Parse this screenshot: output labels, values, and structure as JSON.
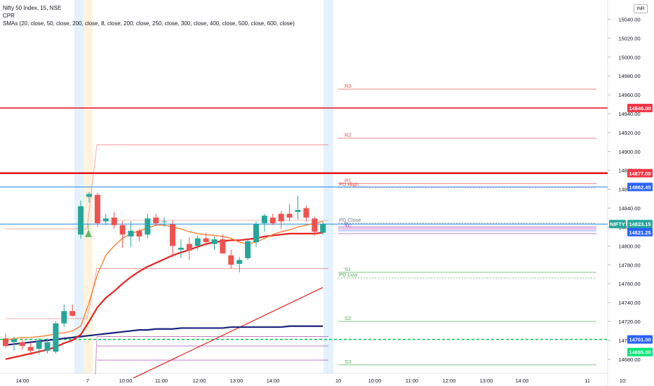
{
  "legend": {
    "symbol": "Nifty 50 Index, 15, NSE",
    "cpr": "CPR",
    "smas": "SMAs (20, close, 50, close, 200, close, 8, close, 200, close, 250, close, 300, close, 400, close, 500, close, 600, close)"
  },
  "currency": "INR",
  "colors": {
    "up": "#26a69a",
    "down": "#ef5350",
    "resistance": "#ef5350",
    "support": "#4caf50",
    "pivot": "#9c27b0",
    "blue_level": "#2962ff",
    "session_band": "#e3f2fd",
    "sma_orange": "#ff7722",
    "sma_red": "#e8201e",
    "sma_navy": "#1a237e",
    "green_dashed": "#00c853"
  },
  "chart_data": {
    "type": "candlestick",
    "symbol": "NIFTY",
    "interval": "15",
    "ylim": [
      14665,
      15050
    ],
    "y_ticks": [
      14680,
      14700,
      14720,
      14740,
      14760,
      14780,
      14800,
      14820,
      14840,
      14860,
      14880,
      14900,
      14920,
      14940,
      14960,
      14980,
      15000,
      15020,
      15040
    ],
    "x_ticks": [
      "14:00",
      "7",
      "10:00",
      "11:00",
      "12:00",
      "13:00",
      "14:00",
      "10",
      "10:00",
      "11:00",
      "12:00",
      "13:00",
      "14:00",
      "11",
      "10:"
    ],
    "candles": [
      {
        "o": 14702,
        "h": 14707,
        "l": 14692,
        "c": 14694
      },
      {
        "o": 14698,
        "h": 14704,
        "l": 14689,
        "c": 14701
      },
      {
        "o": 14698,
        "h": 14702,
        "l": 14690,
        "c": 14694
      },
      {
        "o": 14693,
        "h": 14697,
        "l": 14684,
        "c": 14689
      },
      {
        "o": 14691,
        "h": 14702,
        "l": 14685,
        "c": 14699
      },
      {
        "o": 14689,
        "h": 14702,
        "l": 14686,
        "c": 14698
      },
      {
        "o": 14688,
        "h": 14720,
        "l": 14686,
        "c": 14718
      },
      {
        "o": 14718,
        "h": 14738,
        "l": 14714,
        "c": 14731
      },
      {
        "o": 14731,
        "h": 14738,
        "l": 14725,
        "c": 14726
      },
      {
        "o": 14812,
        "h": 14848,
        "l": 14808,
        "c": 14842
      },
      {
        "o": 14852,
        "h": 14857,
        "l": 14846,
        "c": 14855
      },
      {
        "o": 14854,
        "h": 14856,
        "l": 14820,
        "c": 14824
      },
      {
        "o": 14826,
        "h": 14834,
        "l": 14822,
        "c": 14829
      },
      {
        "o": 14830,
        "h": 14836,
        "l": 14818,
        "c": 14822
      },
      {
        "o": 14822,
        "h": 14826,
        "l": 14798,
        "c": 14812
      },
      {
        "o": 14810,
        "h": 14826,
        "l": 14799,
        "c": 14816
      },
      {
        "o": 14816,
        "h": 14818,
        "l": 14805,
        "c": 14810
      },
      {
        "o": 14812,
        "h": 14834,
        "l": 14808,
        "c": 14829
      },
      {
        "o": 14830,
        "h": 14834,
        "l": 14821,
        "c": 14824
      },
      {
        "o": 14826,
        "h": 14830,
        "l": 14820,
        "c": 14826
      },
      {
        "o": 14823,
        "h": 14827,
        "l": 14788,
        "c": 14800
      },
      {
        "o": 14796,
        "h": 14807,
        "l": 14787,
        "c": 14798
      },
      {
        "o": 14802,
        "h": 14809,
        "l": 14785,
        "c": 14795
      },
      {
        "o": 14800,
        "h": 14811,
        "l": 14796,
        "c": 14808
      },
      {
        "o": 14808,
        "h": 14814,
        "l": 14800,
        "c": 14804
      },
      {
        "o": 14802,
        "h": 14810,
        "l": 14796,
        "c": 14807
      },
      {
        "o": 14807,
        "h": 14812,
        "l": 14792,
        "c": 14792
      },
      {
        "o": 14790,
        "h": 14796,
        "l": 14776,
        "c": 14780
      },
      {
        "o": 14781,
        "h": 14788,
        "l": 14772,
        "c": 14785
      },
      {
        "o": 14787,
        "h": 14807,
        "l": 14785,
        "c": 14805
      },
      {
        "o": 14804,
        "h": 14826,
        "l": 14799,
        "c": 14823
      },
      {
        "o": 14824,
        "h": 14834,
        "l": 14815,
        "c": 14832
      },
      {
        "o": 14830,
        "h": 14834,
        "l": 14822,
        "c": 14824
      },
      {
        "o": 14834,
        "h": 14837,
        "l": 14818,
        "c": 14826
      },
      {
        "o": 14834,
        "h": 14844,
        "l": 14826,
        "c": 14830
      },
      {
        "o": 14836,
        "h": 14853,
        "l": 14828,
        "c": 14838
      },
      {
        "o": 14840,
        "h": 14843,
        "l": 14826,
        "c": 14830
      },
      {
        "o": 14829,
        "h": 14831,
        "l": 14811,
        "c": 14815
      },
      {
        "o": 14814,
        "h": 14826,
        "l": 14812,
        "c": 14823
      }
    ],
    "sma_orange": [
      14700,
      14702,
      14703,
      14703,
      14704,
      14705,
      14707,
      14708,
      14710,
      14715,
      14740,
      14770,
      14790,
      14800,
      14808,
      14813,
      14816,
      14819,
      14822,
      14822,
      14820,
      14818,
      14815,
      14813,
      14812,
      14811,
      14810,
      14808,
      14804,
      14802,
      14804,
      14808,
      14812,
      14815,
      14817,
      14820,
      14822,
      14824,
      14826
    ],
    "sma_red": [
      14680,
      14682,
      14684,
      14686,
      14688,
      14690,
      14693,
      14697,
      14700,
      14706,
      14720,
      14735,
      14745,
      14752,
      14760,
      14767,
      14773,
      14778,
      14782,
      14786,
      14790,
      14793,
      14796,
      14799,
      14802,
      14804,
      14805,
      14806,
      14806,
      14807,
      14808,
      14810,
      14811,
      14812,
      14813,
      14813,
      14813,
      14813,
      14814
    ],
    "sma_navy": [
      14695,
      14696,
      14697,
      14698,
      14699,
      14700,
      14701,
      14702,
      14703,
      14704,
      14705,
      14706,
      14707,
      14708,
      14709,
      14710,
      14711,
      14711,
      14712,
      14712,
      14712,
      14713,
      14713,
      14713,
      14713,
      14713,
      14713,
      14714,
      14714,
      14714,
      14714,
      14714,
      14714,
      14714,
      14715,
      14715,
      14715,
      14715,
      14715
    ],
    "sma_red_long": {
      "start": 14660,
      "end": 14756
    },
    "levels": [
      {
        "name": "R3",
        "value": 14966
      },
      {
        "name": "R2",
        "value": 14914
      },
      {
        "name": "R1",
        "value": 14866
      },
      {
        "name": "PD High",
        "value": 14862
      },
      {
        "name": "PD Close",
        "value": 14824
      },
      {
        "name": "P",
        "value": 14820
      },
      {
        "name": "TC",
        "value": 14818
      },
      {
        "name": "S1",
        "value": 14772
      },
      {
        "name": "PD Low",
        "value": 14766
      },
      {
        "name": "S2",
        "value": 14720
      },
      {
        "name": "S3",
        "value": 14674
      }
    ],
    "horizontal_lines": [
      {
        "value": 14946.0
      },
      {
        "value": 14877.0
      },
      {
        "value": 14862.45
      },
      {
        "value": 14823.15
      },
      {
        "value": 14701.0
      }
    ],
    "price_labels": [
      {
        "text": "14946.00",
        "value": 14946.0
      },
      {
        "text": "14877.00",
        "value": 14877.0
      },
      {
        "text": "14862.45",
        "value": 14862.45
      },
      {
        "text": "NIFTY",
        "value": 14823.15
      },
      {
        "text": "14823.15",
        "value": 14823.15
      },
      {
        "text": "14821.25",
        "value": 14821.25
      },
      {
        "text": "14701.00",
        "value": 14701.0
      },
      {
        "text": "14695.00",
        "value": 14695.0
      }
    ]
  }
}
